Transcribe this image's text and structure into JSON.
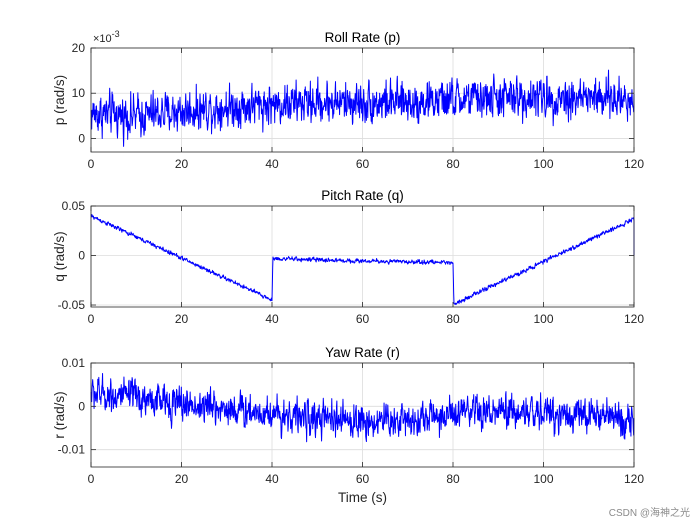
{
  "chart_data": [
    {
      "type": "line",
      "title": "Roll Rate (p)",
      "ylabel": "p (rad/s)",
      "xlabel": "",
      "exponent_label": "×10^-3",
      "exponent_base": "×10",
      "exponent_power": "-3",
      "xlim": [
        0,
        120
      ],
      "ylim": [
        -3,
        20
      ],
      "xticks": [
        0,
        20,
        40,
        60,
        80,
        100,
        120
      ],
      "xtick_labels": [
        "0",
        "20",
        "40",
        "60",
        "80",
        "100",
        "120"
      ],
      "yticks": [
        0,
        10,
        20
      ],
      "ytick_labels": [
        "0",
        "10",
        "20"
      ],
      "grid": true,
      "color": "#0000ff",
      "signal": {
        "x_start": 0,
        "x_end": 120,
        "trend_x": [
          0,
          10,
          20,
          30,
          40,
          50,
          60,
          70,
          80,
          90,
          100,
          110,
          120
        ],
        "trend_y": [
          5.5,
          5.0,
          6.0,
          7.0,
          7.5,
          8.0,
          8.0,
          8.0,
          8.5,
          9.0,
          9.0,
          9.0,
          8.5
        ],
        "noise_std": 3.2,
        "clip": [
          -2.8,
          17.5
        ]
      }
    },
    {
      "type": "line",
      "title": "Pitch Rate (q)",
      "ylabel": "q (rad/s)",
      "xlabel": "",
      "xlim": [
        0,
        120
      ],
      "ylim": [
        -0.052,
        0.05
      ],
      "xticks": [
        0,
        20,
        40,
        60,
        80,
        100,
        120
      ],
      "xtick_labels": [
        "0",
        "20",
        "40",
        "60",
        "80",
        "100",
        "120"
      ],
      "yticks": [
        -0.05,
        0,
        0.05
      ],
      "ytick_labels": [
        "-0.05",
        "0",
        "0.05"
      ],
      "grid": true,
      "color": "#0000ff",
      "signal": {
        "x_start": 0,
        "x_end": 120,
        "trend_x": [
          0,
          40,
          40.2,
          55,
          65,
          80,
          80.2,
          120
        ],
        "trend_y": [
          0.04,
          -0.045,
          -0.003,
          -0.005,
          -0.006,
          -0.007,
          -0.049,
          0.037
        ],
        "noise_std": 0.0015,
        "clip": [
          -0.052,
          0.05
        ]
      }
    },
    {
      "type": "line",
      "title": "Yaw Rate (r)",
      "ylabel": "r (rad/s)",
      "xlabel": "Time (s)",
      "xlim": [
        0,
        120
      ],
      "ylim": [
        -0.014,
        0.01
      ],
      "xticks": [
        0,
        20,
        40,
        60,
        80,
        100,
        120
      ],
      "xtick_labels": [
        "0",
        "20",
        "40",
        "60",
        "80",
        "100",
        "120"
      ],
      "yticks": [
        -0.01,
        0,
        0.01
      ],
      "ytick_labels": [
        "-0.01",
        "0",
        "0.01"
      ],
      "grid": true,
      "color": "#0000ff",
      "signal": {
        "x_start": 0,
        "x_end": 120,
        "trend_x": [
          0,
          10,
          20,
          30,
          40,
          50,
          60,
          70,
          80,
          90,
          100,
          110,
          120
        ],
        "trend_y": [
          0.003,
          0.002,
          0.0005,
          -0.0005,
          -0.0015,
          -0.003,
          -0.0035,
          -0.003,
          -0.002,
          -0.0015,
          -0.0015,
          -0.002,
          -0.003
        ],
        "noise_std": 0.0028,
        "clip": [
          -0.0135,
          0.0095
        ]
      }
    }
  ],
  "watermark": "CSDN @海神之光"
}
